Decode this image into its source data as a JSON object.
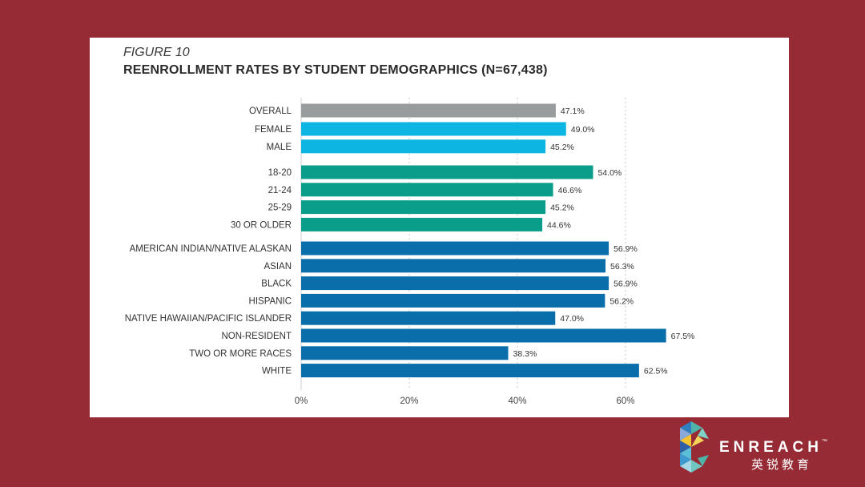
{
  "figure_label": "FIGURE 10",
  "chart_data": {
    "type": "bar",
    "orientation": "horizontal",
    "title": "REENROLLMENT RATES BY STUDENT DEMOGRAPHICS (N=67,438)",
    "xlim": [
      0,
      70
    ],
    "x_ticks": [
      "0%",
      "20%",
      "40%",
      "60%"
    ],
    "grid": "vertical dotted",
    "groups": [
      {
        "color": "#999c9d",
        "categories": [
          "OVERALL"
        ],
        "values": [
          47.1
        ],
        "labels": [
          "47.1%"
        ]
      },
      {
        "color": "#0db6e2",
        "categories": [
          "FEMALE",
          "MALE"
        ],
        "values": [
          49.0,
          45.2
        ],
        "labels": [
          "49.0%",
          "45.2%"
        ]
      },
      {
        "color": "#0a9e8a",
        "categories": [
          "18-20",
          "21-24",
          "25-29",
          "30 OR OLDER"
        ],
        "values": [
          54.0,
          46.6,
          45.2,
          44.6
        ],
        "labels": [
          "54.0%",
          "46.6%",
          "45.2%",
          "44.6%"
        ]
      },
      {
        "color": "#0a6eab",
        "categories": [
          "AMERICAN INDIAN/NATIVE ALASKAN",
          "ASIAN",
          "BLACK",
          "HISPANIC",
          "NATIVE HAWAIIAN/PACIFIC ISLANDER",
          "NON-RESIDENT",
          "TWO OR MORE RACES",
          "WHITE"
        ],
        "values": [
          56.9,
          56.3,
          56.9,
          56.2,
          47.0,
          67.5,
          38.3,
          62.5
        ],
        "labels": [
          "56.9%",
          "56.3%",
          "56.9%",
          "56.2%",
          "47.0%",
          "67.5%",
          "38.3%",
          "62.5%"
        ]
      }
    ]
  },
  "logo": {
    "name": "ENREACH",
    "tm": "™",
    "subtitle": "英锐教育"
  }
}
